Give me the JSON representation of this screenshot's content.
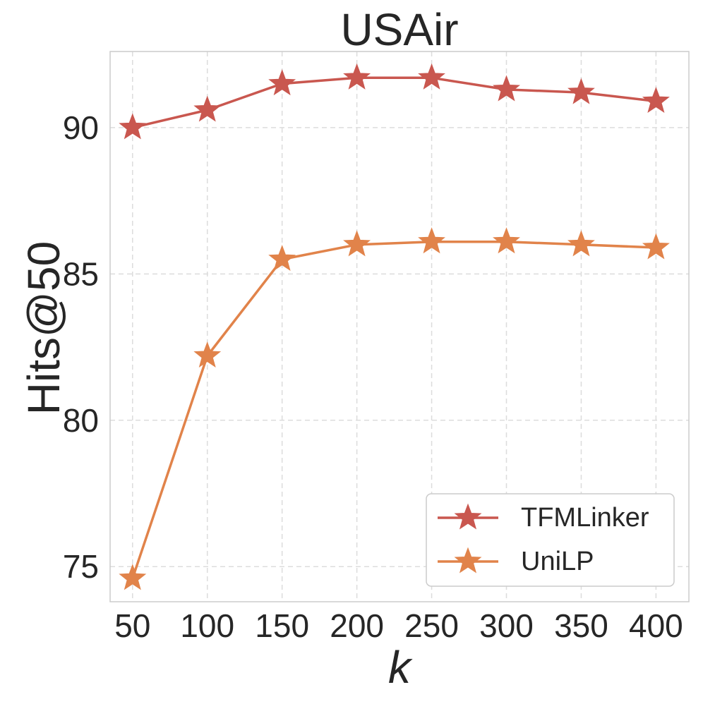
{
  "chart_data": {
    "type": "line",
    "title": "USAir",
    "xlabel": "k",
    "ylabel": "Hits@50",
    "x": [
      50,
      100,
      150,
      200,
      250,
      300,
      350,
      400
    ],
    "xticks": [
      "50",
      "100",
      "150",
      "200",
      "250",
      "300",
      "350",
      "400"
    ],
    "yticks": [
      "75",
      "80",
      "85",
      "90"
    ],
    "ylim": [
      73.8,
      92.6
    ],
    "grid": true,
    "legend_position": "lower-right",
    "marker": "star",
    "series": [
      {
        "name": "TFMLinker",
        "color": "#c9574f",
        "values": [
          90.0,
          90.6,
          91.5,
          91.7,
          91.7,
          91.3,
          91.2,
          90.9
        ]
      },
      {
        "name": "UniLP",
        "color": "#e1834a",
        "values": [
          74.6,
          82.2,
          85.5,
          86.0,
          86.1,
          86.1,
          86.0,
          85.9
        ]
      }
    ]
  }
}
